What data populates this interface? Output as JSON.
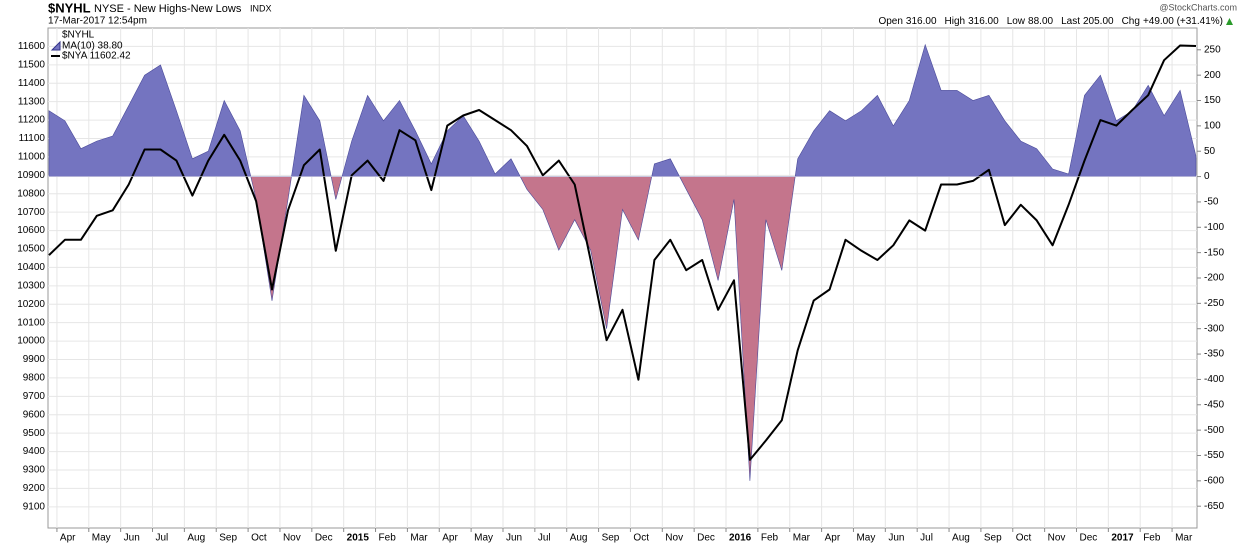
{
  "chart_data": {
    "type": "area-line",
    "title": "$NYHL",
    "subtitle": "NYSE - New Highs-New Lows",
    "exchange": "INDX",
    "date": "17-Mar-2017 12:54pm",
    "source": "@StockCharts.com",
    "quote": [
      {
        "label": "Open",
        "value": "316.00"
      },
      {
        "label": "High",
        "value": "316.00"
      },
      {
        "label": "Low",
        "value": "88.00"
      },
      {
        "label": "Last",
        "value": "205.00"
      },
      {
        "label": "Chg",
        "value": "+49.00 (+31.41%)"
      }
    ],
    "legend_title": "$NYHL",
    "categories": [
      null,
      "Apr",
      null,
      "May",
      null,
      "Jun",
      null,
      "Jul",
      null,
      "Aug",
      null,
      "Sep",
      null,
      "Oct",
      null,
      "Nov",
      null,
      "Dec",
      null,
      "2015",
      null,
      "Feb",
      null,
      "Mar",
      null,
      "Apr",
      null,
      "May",
      null,
      "Jun",
      null,
      "Jul",
      null,
      "Aug",
      null,
      "Sep",
      null,
      "Oct",
      null,
      "Nov",
      null,
      "Dec",
      null,
      "2016",
      null,
      "Feb",
      null,
      "Mar",
      null,
      "Apr",
      null,
      "May",
      null,
      "Jun",
      null,
      "Jul",
      null,
      "Aug",
      null,
      "Sep",
      null,
      "Oct",
      null,
      "Nov",
      null,
      "Dec",
      null,
      "2017",
      null,
      "Feb",
      null,
      "Mar",
      null
    ],
    "series": [
      {
        "name": "MA(10) 38.80",
        "axis": "y2",
        "kind": "area",
        "color": "#7474c0",
        "negative_color": "#c4758c",
        "values": [
          130,
          110,
          55,
          70,
          80,
          140,
          200,
          220,
          130,
          35,
          50,
          150,
          90,
          -45,
          -245,
          -45,
          160,
          110,
          -45,
          70,
          160,
          110,
          150,
          90,
          25,
          90,
          120,
          70,
          5,
          35,
          -25,
          -65,
          -145,
          -85,
          -145,
          -300,
          -65,
          -125,
          25,
          35,
          -25,
          -85,
          -205,
          -45,
          -600,
          -85,
          -185,
          35,
          90,
          130,
          110,
          130,
          160,
          100,
          150,
          260,
          170,
          170,
          150,
          160,
          110,
          70,
          55,
          15,
          5,
          160,
          200,
          110,
          130,
          180,
          120,
          170,
          40
        ]
      },
      {
        "name": "$NYA 11602.42",
        "axis": "y",
        "kind": "line",
        "color": "#000000",
        "values": [
          10467,
          10550,
          10550,
          10680,
          10710,
          10850,
          11040,
          11040,
          10980,
          10790,
          10980,
          11120,
          10980,
          10760,
          10280,
          10710,
          10955,
          11040,
          10490,
          10900,
          10980,
          10870,
          11145,
          11090,
          10820,
          11170,
          11225,
          11255,
          11200,
          11145,
          11060,
          10900,
          10980,
          10850,
          10440,
          10005,
          10170,
          9790,
          10440,
          10550,
          10385,
          10440,
          10170,
          10330,
          9355,
          9460,
          9570,
          9950,
          10220,
          10280,
          10550,
          10490,
          10440,
          10520,
          10655,
          10600,
          10850,
          10850,
          10870,
          10930,
          10630,
          10740,
          10655,
          10520,
          10740,
          10980,
          11200,
          11170,
          11255,
          11335,
          11525,
          11605,
          11602
        ]
      }
    ],
    "ylim": [
      8985,
      11700
    ],
    "yticks": [
      9100,
      9200,
      9300,
      9400,
      9500,
      9600,
      9700,
      9800,
      9900,
      10000,
      10100,
      10200,
      10300,
      10400,
      10500,
      10600,
      10700,
      10800,
      10900,
      11000,
      11100,
      11200,
      11300,
      11400,
      11500,
      11600
    ],
    "y2lim": [
      -693,
      293
    ],
    "y2ticks": [
      -650,
      -600,
      -550,
      -500,
      -450,
      -400,
      -350,
      -300,
      -250,
      -200,
      -150,
      -100,
      -50,
      0,
      50,
      100,
      150,
      200,
      250
    ],
    "grid": true
  }
}
